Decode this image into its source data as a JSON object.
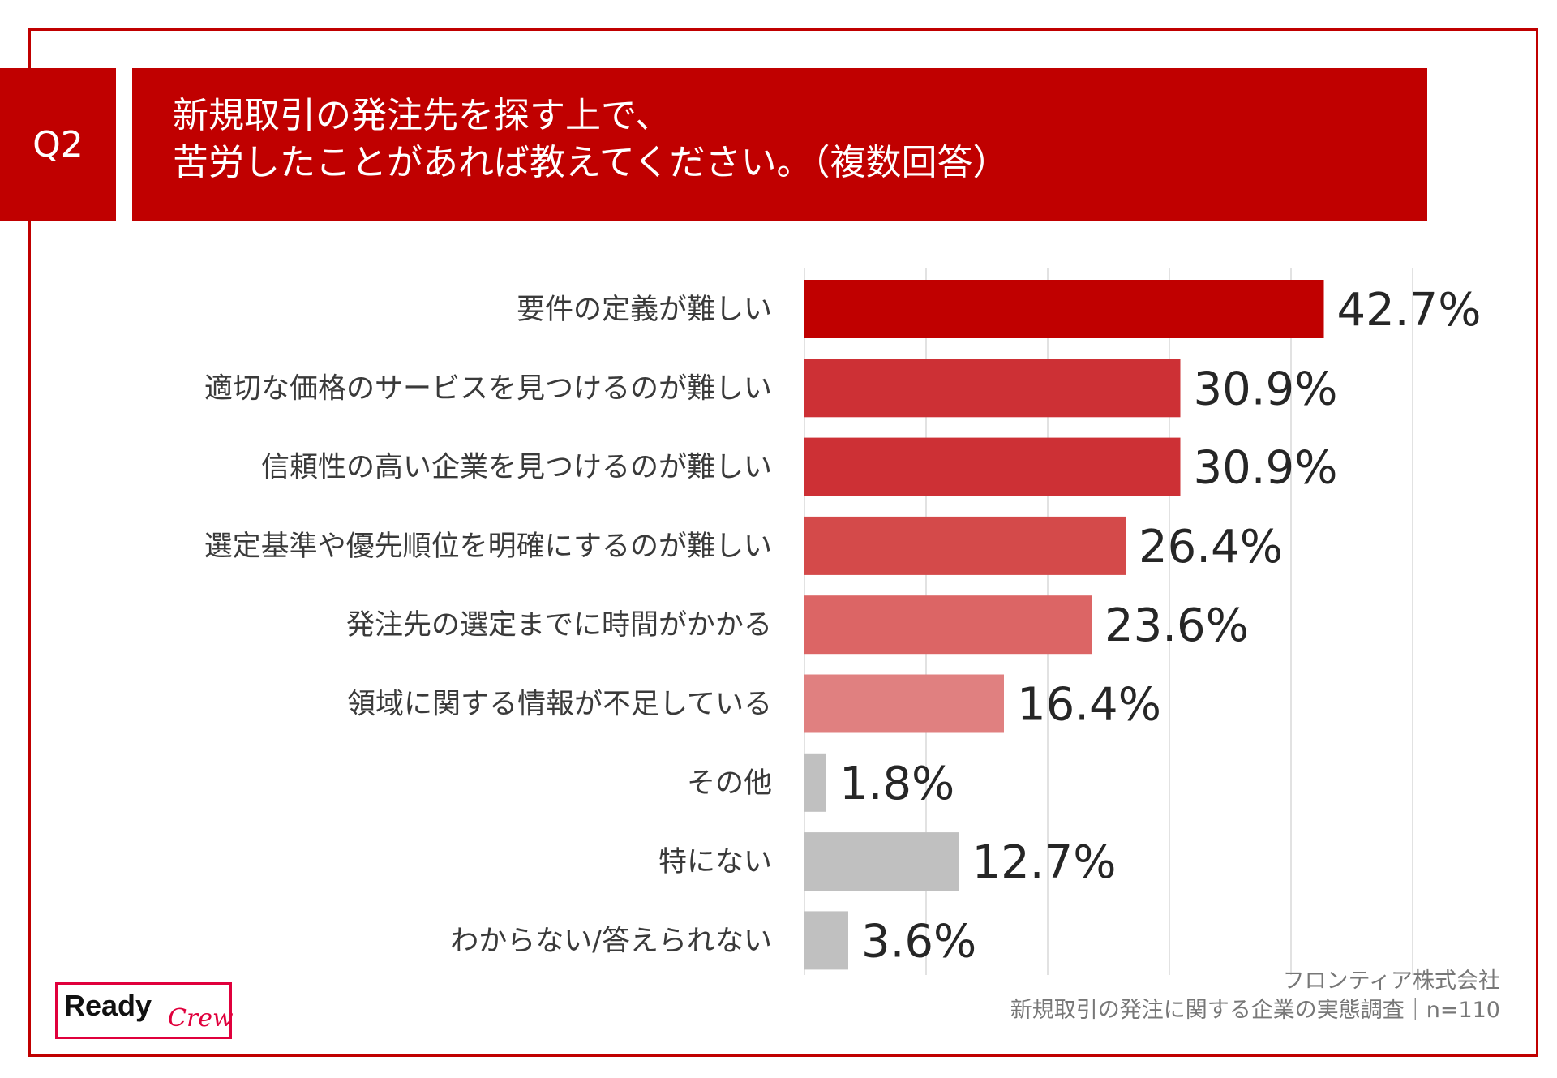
{
  "question": {
    "label": "Q2",
    "title_line1": "新規取引の発注先を探す上で、",
    "title_line2": "苦労したことがあれば教えてください。（複数回答）"
  },
  "chart_data": {
    "type": "bar",
    "orientation": "horizontal",
    "title": "新規取引の発注先を探す上で、苦労したことがあれば教えてください。（複数回答）",
    "categories": [
      "要件の定義が難しい",
      "適切な価格のサービスを見つけるのが難しい",
      "信頼性の高い企業を見つけるのが難しい",
      "選定基準や優先順位を明確にするのが難しい",
      "発注先の選定までに時間がかかる",
      "領域に関する情報が不足している",
      "その他",
      "特にない",
      "わからない/答えられない"
    ],
    "values": [
      42.7,
      30.9,
      30.9,
      26.4,
      23.6,
      16.4,
      1.8,
      12.7,
      3.6
    ],
    "value_labels": [
      "42.7%",
      "30.9%",
      "30.9%",
      "26.4%",
      "23.6%",
      "16.4%",
      "1.8%",
      "12.7%",
      "3.6%"
    ],
    "colors": [
      "#c00000",
      "#cd3035",
      "#cd3035",
      "#d44a4a",
      "#dc6565",
      "#e08080",
      "#c0c0c0",
      "#c0c0c0",
      "#c0c0c0"
    ],
    "xlim": [
      0,
      50
    ],
    "grid": true,
    "unit": "%"
  },
  "source": {
    "company": "フロンティア株式会社",
    "survey": "新規取引の発注に関する企業の実態調査｜n=110"
  },
  "logo": {
    "ready": "Ready",
    "crew": "Crew"
  },
  "colors": {
    "accent": "#c00000",
    "grid": "#d9d9d9"
  }
}
